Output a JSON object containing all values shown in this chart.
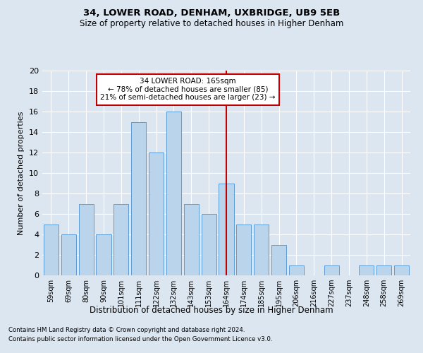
{
  "title1": "34, LOWER ROAD, DENHAM, UXBRIDGE, UB9 5EB",
  "title2": "Size of property relative to detached houses in Higher Denham",
  "xlabel": "Distribution of detached houses by size in Higher Denham",
  "ylabel": "Number of detached properties",
  "footnote1": "Contains HM Land Registry data © Crown copyright and database right 2024.",
  "footnote2": "Contains public sector information licensed under the Open Government Licence v3.0.",
  "bar_labels": [
    "59sqm",
    "69sqm",
    "80sqm",
    "90sqm",
    "101sqm",
    "111sqm",
    "122sqm",
    "132sqm",
    "143sqm",
    "153sqm",
    "164sqm",
    "174sqm",
    "185sqm",
    "195sqm",
    "206sqm",
    "216sqm",
    "227sqm",
    "237sqm",
    "248sqm",
    "258sqm",
    "269sqm"
  ],
  "bar_values": [
    5,
    4,
    7,
    4,
    7,
    15,
    12,
    16,
    7,
    6,
    9,
    5,
    5,
    3,
    1,
    0,
    1,
    0,
    1,
    1,
    1
  ],
  "bar_color": "#bad4eb",
  "bar_edge_color": "#5b9bd5",
  "background_color": "#dce6f1",
  "grid_color": "#ffffff",
  "vline_x_index": 10,
  "vline_color": "#c00000",
  "annotation_title": "34 LOWER ROAD: 165sqm",
  "annotation_line1": "← 78% of detached houses are smaller (85)",
  "annotation_line2": "21% of semi-detached houses are larger (23) →",
  "annotation_box_color": "#ffffff",
  "annotation_box_edge_color": "#c00000",
  "ylim": [
    0,
    20
  ],
  "yticks": [
    0,
    2,
    4,
    6,
    8,
    10,
    12,
    14,
    16,
    18,
    20
  ]
}
